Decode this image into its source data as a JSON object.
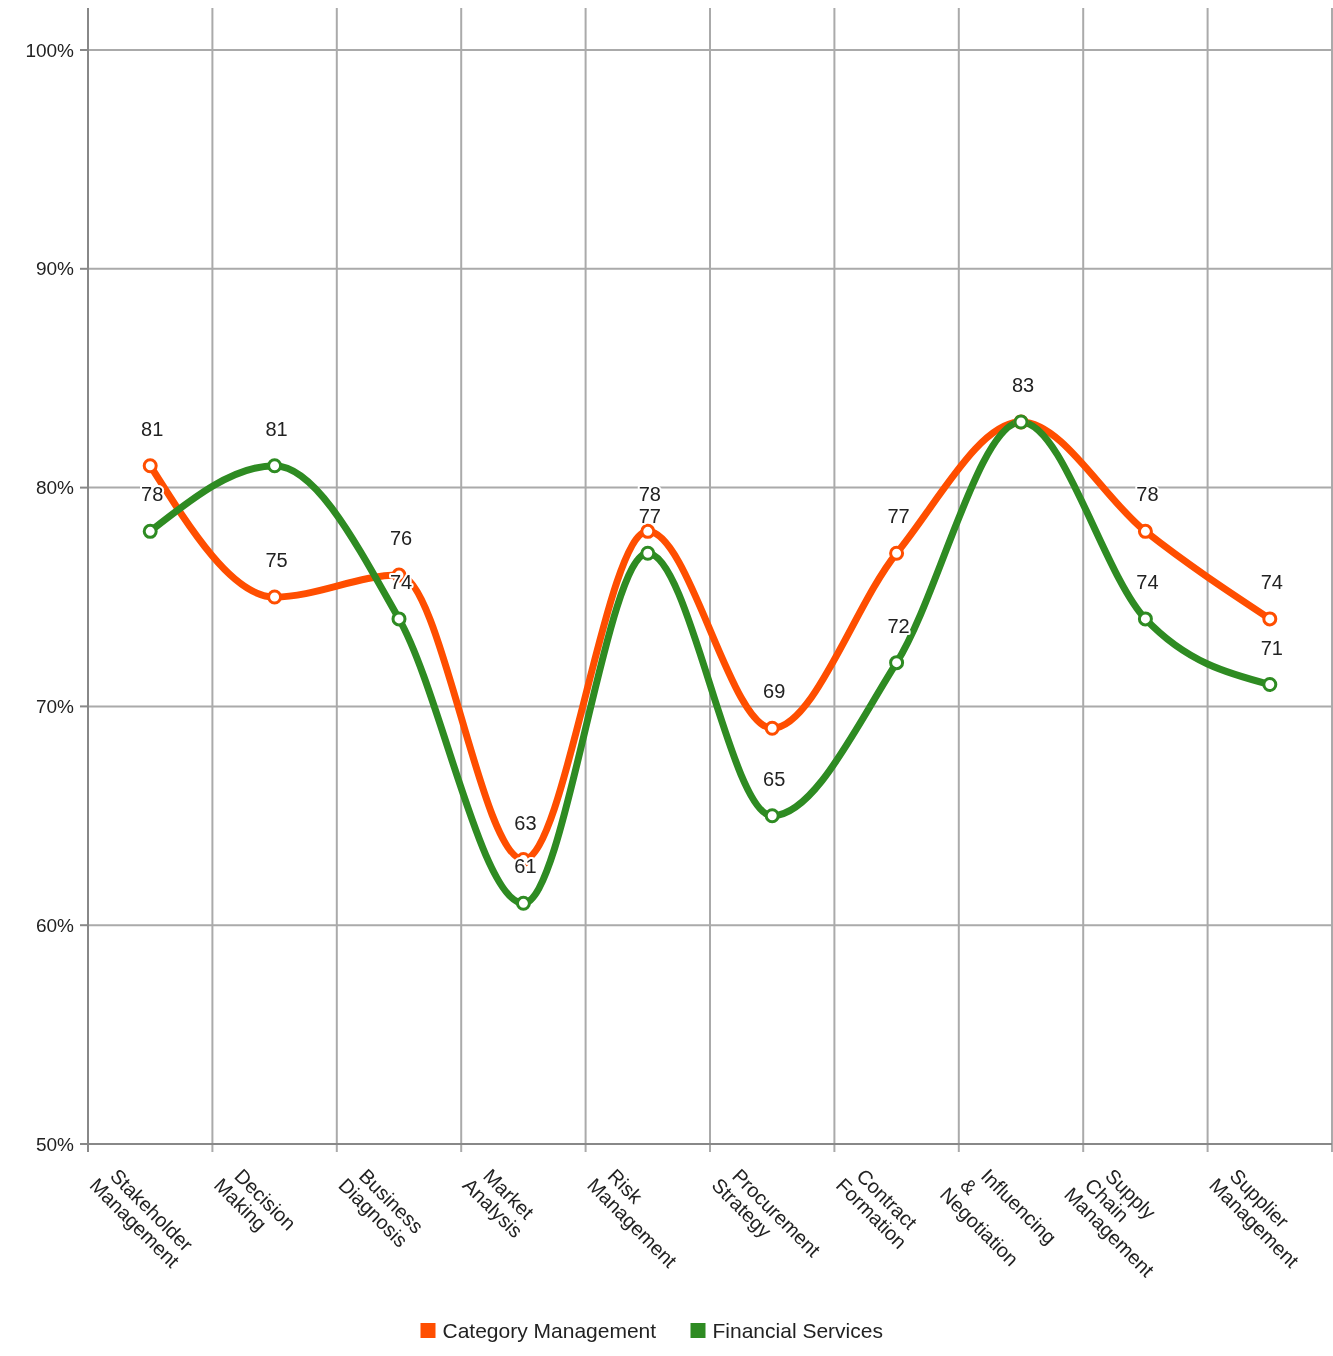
{
  "chart_data": {
    "type": "line",
    "categories": [
      "Stakeholder Management",
      "Decision Making",
      "Business Diagnosis",
      "Market Analysis",
      "Risk Management",
      "Procurement Strategy",
      "Contract Formation",
      "Influencing & Negotiation",
      "Supply Chain Management",
      "Supplier Management"
    ],
    "series": [
      {
        "name": "Category Management",
        "color": "#ff4e00",
        "values": [
          81,
          75,
          76,
          63,
          78,
          69,
          77,
          83,
          78,
          74
        ],
        "value_labels": [
          "81",
          "75",
          "76",
          "63",
          "78",
          "69",
          "77",
          "83",
          "78",
          "74"
        ]
      },
      {
        "name": "Financial Services",
        "color": "#2e8b22",
        "values": [
          78,
          81,
          74,
          61,
          77,
          65,
          72,
          83,
          74,
          71
        ],
        "value_labels": [
          "78",
          "81",
          "74",
          "61",
          "77",
          "65",
          "72",
          null,
          "74",
          "71"
        ]
      }
    ],
    "ylim": [
      50,
      100
    ],
    "yticks": [
      {
        "value": 50,
        "label": "50%"
      },
      {
        "value": 60,
        "label": "60%"
      },
      {
        "value": 70,
        "label": "70%"
      },
      {
        "value": 80,
        "label": "80%"
      },
      {
        "value": 90,
        "label": "90%"
      },
      {
        "value": 100,
        "label": "100%"
      }
    ],
    "grid": true,
    "legend": "bottom",
    "marker": "circle",
    "line_style": "solid"
  }
}
